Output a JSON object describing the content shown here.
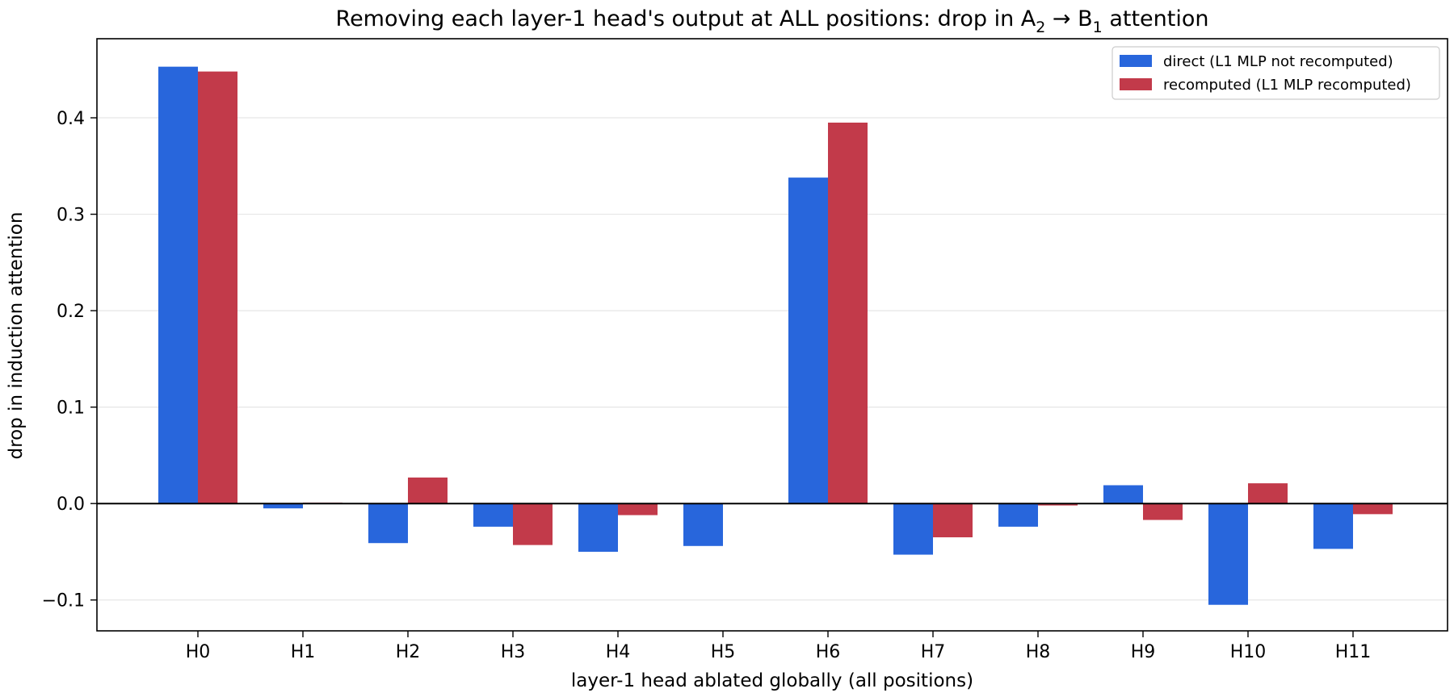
{
  "chart_data": {
    "type": "bar",
    "title": {
      "prefix": "Removing each layer-1 head's output at ALL positions: drop in A",
      "sub_a": "2",
      "arrow": " → B",
      "sub_b": "1",
      "suffix": " attention"
    },
    "xlabel": "layer-1 head ablated globally (all positions)",
    "ylabel": "drop in induction attention",
    "categories": [
      "H0",
      "H1",
      "H2",
      "H3",
      "H4",
      "H5",
      "H6",
      "H7",
      "H8",
      "H9",
      "H10",
      "H11"
    ],
    "series": [
      {
        "name": "direct (L1 MLP not recomputed)",
        "color": "#2866dc",
        "values": [
          0.453,
          -0.005,
          -0.041,
          -0.024,
          -0.05,
          -0.044,
          0.338,
          -0.053,
          -0.024,
          0.019,
          -0.105,
          -0.047
        ]
      },
      {
        "name": "recomputed (L1 MLP recomputed)",
        "color": "#c23a4a",
        "values": [
          0.448,
          0.001,
          0.027,
          -0.043,
          -0.012,
          0.0,
          0.395,
          -0.035,
          -0.002,
          -0.017,
          0.021,
          -0.011
        ]
      }
    ],
    "ylim": [
      -0.132,
      0.482
    ],
    "yticks": [
      -0.1,
      0.0,
      0.1,
      0.2,
      0.3,
      0.4
    ],
    "ytick_labels": [
      "−0.1",
      "0.0",
      "0.1",
      "0.2",
      "0.3",
      "0.4"
    ],
    "grid": "horizontal",
    "legend": "top-right"
  }
}
